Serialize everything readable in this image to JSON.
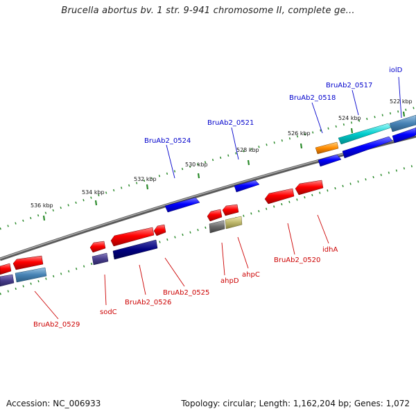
{
  "title": "Brucella abortus bv. 1 str. 9-941 chromosome II, complete ge...",
  "footer": {
    "accession": "Accession: NC_006933",
    "summary": "Topology: circular; Length: 1,162,204 bp; Genes: 1,072"
  },
  "colors": {
    "forward_label": "#0000cc",
    "reverse_label": "#cc0000",
    "backbone": "#808080",
    "tick": "#2a8a2a"
  },
  "ticks": [
    "522 kbp",
    "524 kbp",
    "526 kbp",
    "528 kbp",
    "530 kbp",
    "532 kbp",
    "534 kbp",
    "536 kbp"
  ],
  "labels": {
    "forward": [
      "iolD",
      "BruAb2_0517",
      "BruAb2_0518",
      "BruAb2_0521",
      "BruAb2_0524"
    ],
    "reverse": [
      "BruAb2_0529",
      "sodC",
      "BruAb2_0526",
      "BruAb2_0525",
      "ahpD",
      "ahpC",
      "BruAb2_0520",
      "idhA"
    ]
  }
}
